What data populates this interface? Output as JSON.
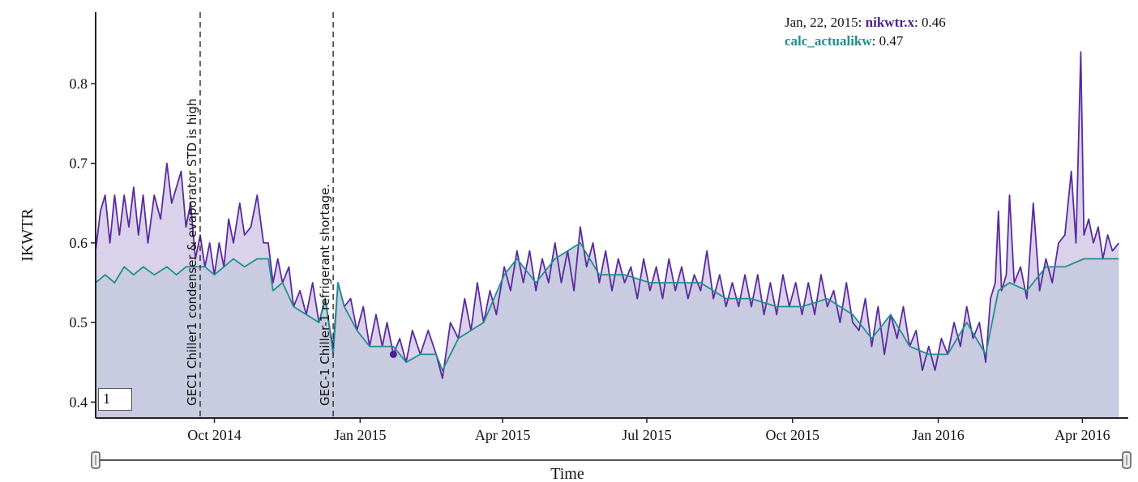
{
  "chart_data": {
    "type": "area",
    "xlabel": "Time",
    "ylabel": "IKWTR",
    "ylim": [
      0.38,
      0.89
    ],
    "y_ticks": [
      "0.4",
      "0.5",
      "0.6",
      "0.7",
      "0.8"
    ],
    "x_range": [
      "2014-07-18",
      "2016-04-30"
    ],
    "x_ticks": [
      {
        "date": "2014-10-01",
        "label": "Oct 2014"
      },
      {
        "date": "2015-01-01",
        "label": "Jan 2015"
      },
      {
        "date": "2015-04-01",
        "label": "Apr 2015"
      },
      {
        "date": "2015-07-01",
        "label": "Jul 2015"
      },
      {
        "date": "2015-10-01",
        "label": "Oct 2015"
      },
      {
        "date": "2016-01-01",
        "label": "Jan 2016"
      },
      {
        "date": "2016-04-01",
        "label": "Apr 2016"
      }
    ],
    "series": [
      {
        "name": "nikwtr.x",
        "color": "#5b2a9e",
        "fill": "#d9d2ea",
        "points": [
          [
            "2014-07-18",
            0.59
          ],
          [
            "2014-07-21",
            0.64
          ],
          [
            "2014-07-24",
            0.66
          ],
          [
            "2014-07-27",
            0.6
          ],
          [
            "2014-07-30",
            0.66
          ],
          [
            "2014-08-02",
            0.61
          ],
          [
            "2014-08-05",
            0.66
          ],
          [
            "2014-08-08",
            0.62
          ],
          [
            "2014-08-11",
            0.67
          ],
          [
            "2014-08-14",
            0.61
          ],
          [
            "2014-08-17",
            0.66
          ],
          [
            "2014-08-20",
            0.6
          ],
          [
            "2014-08-24",
            0.66
          ],
          [
            "2014-08-28",
            0.63
          ],
          [
            "2014-09-01",
            0.7
          ],
          [
            "2014-09-04",
            0.65
          ],
          [
            "2014-09-07",
            0.67
          ],
          [
            "2014-09-10",
            0.69
          ],
          [
            "2014-09-13",
            0.62
          ],
          [
            "2014-09-16",
            0.65
          ],
          [
            "2014-09-19",
            0.58
          ],
          [
            "2014-09-22",
            0.61
          ],
          [
            "2014-09-25",
            0.57
          ],
          [
            "2014-09-28",
            0.6
          ],
          [
            "2014-10-01",
            0.56
          ],
          [
            "2014-10-04",
            0.6
          ],
          [
            "2014-10-07",
            0.57
          ],
          [
            "2014-10-10",
            0.63
          ],
          [
            "2014-10-13",
            0.6
          ],
          [
            "2014-10-17",
            0.65
          ],
          [
            "2014-10-20",
            0.61
          ],
          [
            "2014-10-24",
            0.62
          ],
          [
            "2014-10-28",
            0.66
          ],
          [
            "2014-11-01",
            0.6
          ],
          [
            "2014-11-04",
            0.6
          ],
          [
            "2014-11-07",
            0.55
          ],
          [
            "2014-11-10",
            0.58
          ],
          [
            "2014-11-13",
            0.55
          ],
          [
            "2014-11-17",
            0.57
          ],
          [
            "2014-11-20",
            0.52
          ],
          [
            "2014-11-24",
            0.54
          ],
          [
            "2014-11-28",
            0.51
          ],
          [
            "2014-12-02",
            0.55
          ],
          [
            "2014-12-06",
            0.5
          ],
          [
            "2014-12-10",
            0.53
          ],
          [
            "2014-12-13",
            0.49
          ],
          [
            "2014-12-15",
            0.47
          ],
          [
            "2014-12-18",
            0.55
          ],
          [
            "2014-12-22",
            0.52
          ],
          [
            "2014-12-26",
            0.53
          ],
          [
            "2014-12-30",
            0.49
          ],
          [
            "2015-01-03",
            0.52
          ],
          [
            "2015-01-07",
            0.47
          ],
          [
            "2015-01-11",
            0.51
          ],
          [
            "2015-01-15",
            0.47
          ],
          [
            "2015-01-18",
            0.5
          ],
          [
            "2015-01-22",
            0.46
          ],
          [
            "2015-01-26",
            0.48
          ],
          [
            "2015-01-30",
            0.45
          ],
          [
            "2015-02-03",
            0.49
          ],
          [
            "2015-02-08",
            0.46
          ],
          [
            "2015-02-13",
            0.49
          ],
          [
            "2015-02-18",
            0.46
          ],
          [
            "2015-02-22",
            0.43
          ],
          [
            "2015-02-27",
            0.5
          ],
          [
            "2015-03-04",
            0.48
          ],
          [
            "2015-03-08",
            0.53
          ],
          [
            "2015-03-12",
            0.49
          ],
          [
            "2015-03-16",
            0.55
          ],
          [
            "2015-03-20",
            0.5
          ],
          [
            "2015-03-24",
            0.54
          ],
          [
            "2015-03-28",
            0.51
          ],
          [
            "2015-04-02",
            0.57
          ],
          [
            "2015-04-06",
            0.54
          ],
          [
            "2015-04-10",
            0.59
          ],
          [
            "2015-04-14",
            0.55
          ],
          [
            "2015-04-18",
            0.59
          ],
          [
            "2015-04-22",
            0.54
          ],
          [
            "2015-04-26",
            0.58
          ],
          [
            "2015-04-30",
            0.55
          ],
          [
            "2015-05-04",
            0.6
          ],
          [
            "2015-05-08",
            0.55
          ],
          [
            "2015-05-12",
            0.59
          ],
          [
            "2015-05-16",
            0.54
          ],
          [
            "2015-05-20",
            0.62
          ],
          [
            "2015-05-24",
            0.57
          ],
          [
            "2015-05-28",
            0.6
          ],
          [
            "2015-06-01",
            0.55
          ],
          [
            "2015-06-05",
            0.59
          ],
          [
            "2015-06-09",
            0.54
          ],
          [
            "2015-06-13",
            0.58
          ],
          [
            "2015-06-17",
            0.55
          ],
          [
            "2015-06-21",
            0.57
          ],
          [
            "2015-06-25",
            0.53
          ],
          [
            "2015-06-29",
            0.58
          ],
          [
            "2015-07-03",
            0.54
          ],
          [
            "2015-07-07",
            0.57
          ],
          [
            "2015-07-11",
            0.53
          ],
          [
            "2015-07-15",
            0.58
          ],
          [
            "2015-07-19",
            0.54
          ],
          [
            "2015-07-23",
            0.57
          ],
          [
            "2015-07-27",
            0.53
          ],
          [
            "2015-07-31",
            0.56
          ],
          [
            "2015-08-04",
            0.54
          ],
          [
            "2015-08-08",
            0.59
          ],
          [
            "2015-08-12",
            0.53
          ],
          [
            "2015-08-16",
            0.56
          ],
          [
            "2015-08-20",
            0.52
          ],
          [
            "2015-08-24",
            0.55
          ],
          [
            "2015-08-28",
            0.52
          ],
          [
            "2015-09-01",
            0.56
          ],
          [
            "2015-09-05",
            0.52
          ],
          [
            "2015-09-09",
            0.56
          ],
          [
            "2015-09-13",
            0.51
          ],
          [
            "2015-09-17",
            0.55
          ],
          [
            "2015-09-21",
            0.51
          ],
          [
            "2015-09-25",
            0.56
          ],
          [
            "2015-09-29",
            0.52
          ],
          [
            "2015-10-03",
            0.55
          ],
          [
            "2015-10-07",
            0.51
          ],
          [
            "2015-10-11",
            0.55
          ],
          [
            "2015-10-15",
            0.51
          ],
          [
            "2015-10-19",
            0.56
          ],
          [
            "2015-10-23",
            0.52
          ],
          [
            "2015-10-27",
            0.54
          ],
          [
            "2015-10-31",
            0.5
          ],
          [
            "2015-11-04",
            0.55
          ],
          [
            "2015-11-08",
            0.5
          ],
          [
            "2015-11-12",
            0.49
          ],
          [
            "2015-11-16",
            0.53
          ],
          [
            "2015-11-20",
            0.47
          ],
          [
            "2015-11-24",
            0.52
          ],
          [
            "2015-11-28",
            0.46
          ],
          [
            "2015-12-02",
            0.51
          ],
          [
            "2015-12-06",
            0.48
          ],
          [
            "2015-12-10",
            0.52
          ],
          [
            "2015-12-14",
            0.47
          ],
          [
            "2015-12-18",
            0.49
          ],
          [
            "2015-12-22",
            0.44
          ],
          [
            "2015-12-26",
            0.47
          ],
          [
            "2015-12-30",
            0.44
          ],
          [
            "2016-01-03",
            0.48
          ],
          [
            "2016-01-07",
            0.46
          ],
          [
            "2016-01-11",
            0.5
          ],
          [
            "2016-01-15",
            0.47
          ],
          [
            "2016-01-19",
            0.52
          ],
          [
            "2016-01-23",
            0.48
          ],
          [
            "2016-01-27",
            0.5
          ],
          [
            "2016-01-31",
            0.45
          ],
          [
            "2016-02-03",
            0.53
          ],
          [
            "2016-02-06",
            0.55
          ],
          [
            "2016-02-08",
            0.64
          ],
          [
            "2016-02-10",
            0.54
          ],
          [
            "2016-02-13",
            0.56
          ],
          [
            "2016-02-15",
            0.66
          ],
          [
            "2016-02-18",
            0.55
          ],
          [
            "2016-02-22",
            0.57
          ],
          [
            "2016-02-26",
            0.53
          ],
          [
            "2016-03-01",
            0.65
          ],
          [
            "2016-03-05",
            0.54
          ],
          [
            "2016-03-09",
            0.58
          ],
          [
            "2016-03-13",
            0.55
          ],
          [
            "2016-03-17",
            0.6
          ],
          [
            "2016-03-21",
            0.61
          ],
          [
            "2016-03-25",
            0.69
          ],
          [
            "2016-03-28",
            0.6
          ],
          [
            "2016-03-31",
            0.84
          ],
          [
            "2016-04-02",
            0.61
          ],
          [
            "2016-04-05",
            0.63
          ],
          [
            "2016-04-08",
            0.6
          ],
          [
            "2016-04-11",
            0.62
          ],
          [
            "2016-04-14",
            0.58
          ],
          [
            "2016-04-17",
            0.61
          ],
          [
            "2016-04-20",
            0.59
          ],
          [
            "2016-04-24",
            0.6
          ]
        ]
      },
      {
        "name": "calc_actualikw",
        "color": "#1f8f8f",
        "fill": "#c7cadf",
        "points": [
          [
            "2014-07-18",
            0.55
          ],
          [
            "2014-07-24",
            0.56
          ],
          [
            "2014-07-30",
            0.55
          ],
          [
            "2014-08-05",
            0.57
          ],
          [
            "2014-08-11",
            0.56
          ],
          [
            "2014-08-17",
            0.57
          ],
          [
            "2014-08-24",
            0.56
          ],
          [
            "2014-09-01",
            0.57
          ],
          [
            "2014-09-07",
            0.56
          ],
          [
            "2014-09-13",
            0.57
          ],
          [
            "2014-09-19",
            0.57
          ],
          [
            "2014-09-25",
            0.57
          ],
          [
            "2014-10-01",
            0.56
          ],
          [
            "2014-10-07",
            0.57
          ],
          [
            "2014-10-13",
            0.58
          ],
          [
            "2014-10-20",
            0.57
          ],
          [
            "2014-10-28",
            0.58
          ],
          [
            "2014-11-04",
            0.58
          ],
          [
            "2014-11-07",
            0.54
          ],
          [
            "2014-11-13",
            0.55
          ],
          [
            "2014-11-20",
            0.52
          ],
          [
            "2014-11-28",
            0.51
          ],
          [
            "2014-12-06",
            0.5
          ],
          [
            "2014-12-10",
            0.53
          ],
          [
            "2014-12-15",
            0.46
          ],
          [
            "2014-12-18",
            0.55
          ],
          [
            "2014-12-22",
            0.52
          ],
          [
            "2014-12-30",
            0.49
          ],
          [
            "2015-01-07",
            0.47
          ],
          [
            "2015-01-15",
            0.47
          ],
          [
            "2015-01-22",
            0.47
          ],
          [
            "2015-01-30",
            0.45
          ],
          [
            "2015-02-08",
            0.46
          ],
          [
            "2015-02-18",
            0.46
          ],
          [
            "2015-02-22",
            0.44
          ],
          [
            "2015-03-04",
            0.48
          ],
          [
            "2015-03-12",
            0.49
          ],
          [
            "2015-03-20",
            0.5
          ],
          [
            "2015-04-02",
            0.56
          ],
          [
            "2015-04-10",
            0.58
          ],
          [
            "2015-04-22",
            0.55
          ],
          [
            "2015-05-04",
            0.58
          ],
          [
            "2015-05-20",
            0.6
          ],
          [
            "2015-06-01",
            0.56
          ],
          [
            "2015-06-17",
            0.56
          ],
          [
            "2015-07-03",
            0.55
          ],
          [
            "2015-07-19",
            0.55
          ],
          [
            "2015-08-04",
            0.55
          ],
          [
            "2015-08-20",
            0.53
          ],
          [
            "2015-09-05",
            0.53
          ],
          [
            "2015-09-21",
            0.52
          ],
          [
            "2015-10-07",
            0.52
          ],
          [
            "2015-10-23",
            0.53
          ],
          [
            "2015-11-08",
            0.51
          ],
          [
            "2015-11-20",
            0.48
          ],
          [
            "2015-12-02",
            0.51
          ],
          [
            "2015-12-14",
            0.47
          ],
          [
            "2015-12-26",
            0.46
          ],
          [
            "2016-01-07",
            0.46
          ],
          [
            "2016-01-19",
            0.5
          ],
          [
            "2016-01-31",
            0.46
          ],
          [
            "2016-02-08",
            0.54
          ],
          [
            "2016-02-15",
            0.55
          ],
          [
            "2016-02-26",
            0.54
          ],
          [
            "2016-03-09",
            0.57
          ],
          [
            "2016-03-21",
            0.57
          ],
          [
            "2016-04-02",
            0.58
          ],
          [
            "2016-04-14",
            0.58
          ],
          [
            "2016-04-24",
            0.58
          ]
        ]
      }
    ],
    "annotations": [
      {
        "date": "2014-09-22",
        "text": "GEC1 Chiller1 condenser & evaporator STD is high"
      },
      {
        "date": "2014-12-15",
        "text": "GEC-1 Chiller-1 refrigerant shortage."
      }
    ],
    "hover_point": {
      "date": "2015-01-22",
      "series": "nikwtr.x",
      "value": 0.46
    },
    "legend": {
      "placement": "top-right",
      "date_label": "Jan, 22, 2015",
      "entries": [
        {
          "name": "nikwtr.x",
          "color": "#4b1f8f",
          "value": "0.46"
        },
        {
          "name": "calc_actualikw",
          "color": "#1f8f8f",
          "value": "0.47"
        }
      ]
    },
    "roll_period": "1",
    "grid": false,
    "range_selector": true
  }
}
